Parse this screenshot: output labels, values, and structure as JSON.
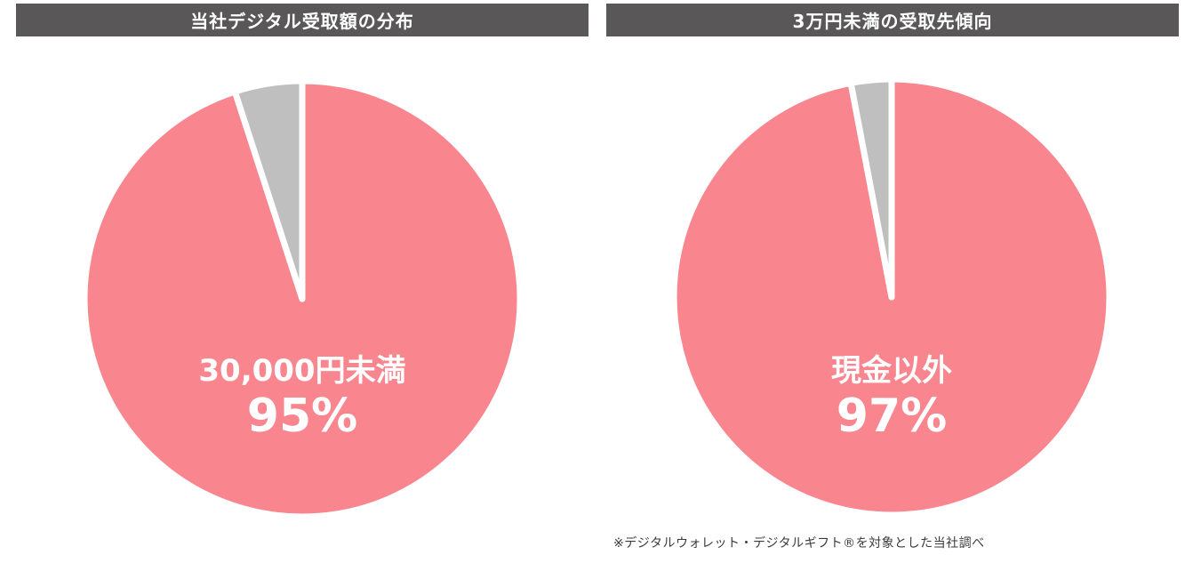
{
  "chart_data": [
    {
      "type": "pie",
      "title": "当社デジタル受取額の分布",
      "slices": [
        {
          "label": "30,000円未満",
          "value": 95,
          "color": "#f9868e"
        },
        {
          "label": "",
          "value": 5,
          "color": "#bfbfbf"
        }
      ],
      "center_label": "30,000円未満",
      "center_value": "95%"
    },
    {
      "type": "pie",
      "title": "3万円未満の受取先傾向",
      "slices": [
        {
          "label": "現金以外",
          "value": 97,
          "color": "#f9868e"
        },
        {
          "label": "",
          "value": 3,
          "color": "#bfbfbf"
        }
      ],
      "center_label": "現金以外",
      "center_value": "97%"
    }
  ],
  "footnote": "※デジタルウォレット・デジタルギフト®を対象とした当社調べ"
}
